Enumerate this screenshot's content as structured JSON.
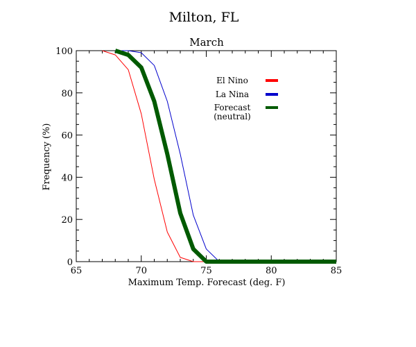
{
  "chart_data": {
    "type": "line",
    "title": "Milton, FL",
    "subtitle": "March",
    "xlabel": "Maximum Temp. Forecast (deg. F)",
    "ylabel": "Frequency (%)",
    "xlim": [
      65,
      85
    ],
    "ylim": [
      0,
      100
    ],
    "x_ticks": [
      "65",
      "70",
      "75",
      "80",
      "85"
    ],
    "y_ticks": [
      "0",
      "20",
      "40",
      "60",
      "80",
      "100"
    ],
    "grid": false,
    "legend_position": "upper-right",
    "series": [
      {
        "name": "El Nino",
        "color": "#ff0000",
        "width": "thin",
        "points": [
          [
            67,
            100
          ],
          [
            68,
            98
          ],
          [
            69,
            91
          ],
          [
            70,
            70
          ],
          [
            71,
            39
          ],
          [
            72,
            14
          ],
          [
            73,
            2
          ],
          [
            74,
            0
          ],
          [
            75,
            0
          ],
          [
            76,
            0
          ],
          [
            77,
            0
          ],
          [
            78,
            0
          ],
          [
            79,
            0
          ],
          [
            80,
            0
          ],
          [
            81,
            0
          ],
          [
            82,
            0
          ],
          [
            83,
            0
          ],
          [
            84,
            0
          ],
          [
            85,
            0
          ]
        ]
      },
      {
        "name": "La Nina",
        "color": "#0000cc",
        "width": "thin",
        "points": [
          [
            68,
            100
          ],
          [
            69,
            100
          ],
          [
            70,
            99
          ],
          [
            71,
            93
          ],
          [
            72,
            76
          ],
          [
            73,
            51
          ],
          [
            74,
            22
          ],
          [
            75,
            6
          ],
          [
            76,
            0
          ],
          [
            77,
            0
          ],
          [
            78,
            0
          ],
          [
            79,
            0
          ],
          [
            80,
            0
          ],
          [
            81,
            0
          ],
          [
            82,
            0
          ],
          [
            83,
            0
          ],
          [
            84,
            0
          ],
          [
            85,
            0
          ]
        ]
      },
      {
        "name": "Forecast\n(neutral)",
        "label_lines": [
          "Forecast",
          "(neutral)"
        ],
        "color": "#005a00",
        "width": "thick",
        "points": [
          [
            68,
            100
          ],
          [
            69,
            98
          ],
          [
            70,
            92
          ],
          [
            71,
            76
          ],
          [
            72,
            51
          ],
          [
            73,
            23
          ],
          [
            74,
            6
          ],
          [
            75,
            0
          ],
          [
            76,
            0
          ],
          [
            77,
            0
          ],
          [
            78,
            0
          ],
          [
            79,
            0
          ],
          [
            80,
            0
          ],
          [
            81,
            0
          ],
          [
            82,
            0
          ],
          [
            83,
            0
          ],
          [
            84,
            0
          ],
          [
            85,
            0
          ]
        ]
      }
    ]
  }
}
